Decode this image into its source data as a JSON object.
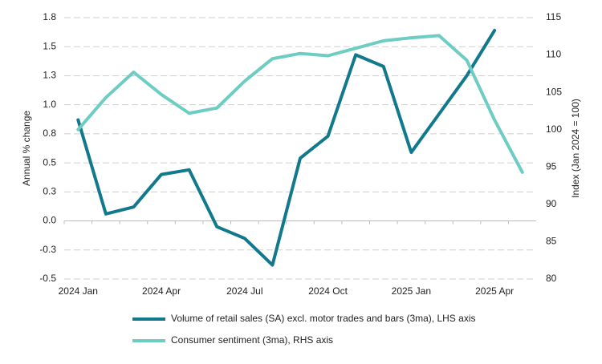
{
  "chart_data": {
    "type": "line",
    "categories": [
      "2024 Jan",
      null,
      null,
      "2024 Apr",
      null,
      null,
      "2024 Jul",
      null,
      null,
      "2024 Oct",
      null,
      null,
      "2025 Jan",
      null,
      null,
      "2025 Apr",
      null
    ],
    "y_label": "Annual % change",
    "y2_label": "Index  (Jan 2024 = 100)",
    "ylim": [
      -0.5,
      1.75
    ],
    "yticks": [
      -0.5,
      {
        "value": -0.25,
        "label": "-0.3"
      },
      {
        "value": 0,
        "label": "0.0"
      },
      {
        "value": 0.25,
        "label": "0.3"
      },
      0.5,
      {
        "value": 0.75,
        "label": "0.8"
      },
      {
        "value": 1,
        "label": "1.0"
      },
      {
        "value": 1.25,
        "label": "1.3"
      },
      1.5,
      {
        "value": 1.75,
        "label": "1.8"
      }
    ],
    "y2lim": [
      80,
      115
    ],
    "y2ticks": [
      80,
      85,
      90,
      95,
      100,
      105,
      110,
      115
    ],
    "grid": true,
    "series": [
      {
        "name": "Volume of retail sales (SA) excl. motor trades and bars (3ma), LHS axis",
        "color": "#12798c",
        "values": [
          0.87,
          0.06,
          0.12,
          0.4,
          0.44,
          -0.05,
          -0.15,
          -0.38,
          0.54,
          0.73,
          1.43,
          1.33,
          0.59,
          0.92,
          1.25,
          1.64,
          null
        ]
      },
      {
        "name": "Consumer sentiment (3ma), RHS axis",
        "color": "#6dcdc3",
        "axis": "y2",
        "values": [
          100.0,
          104.3,
          107.7,
          104.7,
          102.2,
          102.9,
          106.5,
          109.5,
          110.2,
          109.9,
          110.9,
          111.9,
          112.3,
          112.6,
          109.3,
          101.3,
          94.3
        ]
      }
    ]
  }
}
